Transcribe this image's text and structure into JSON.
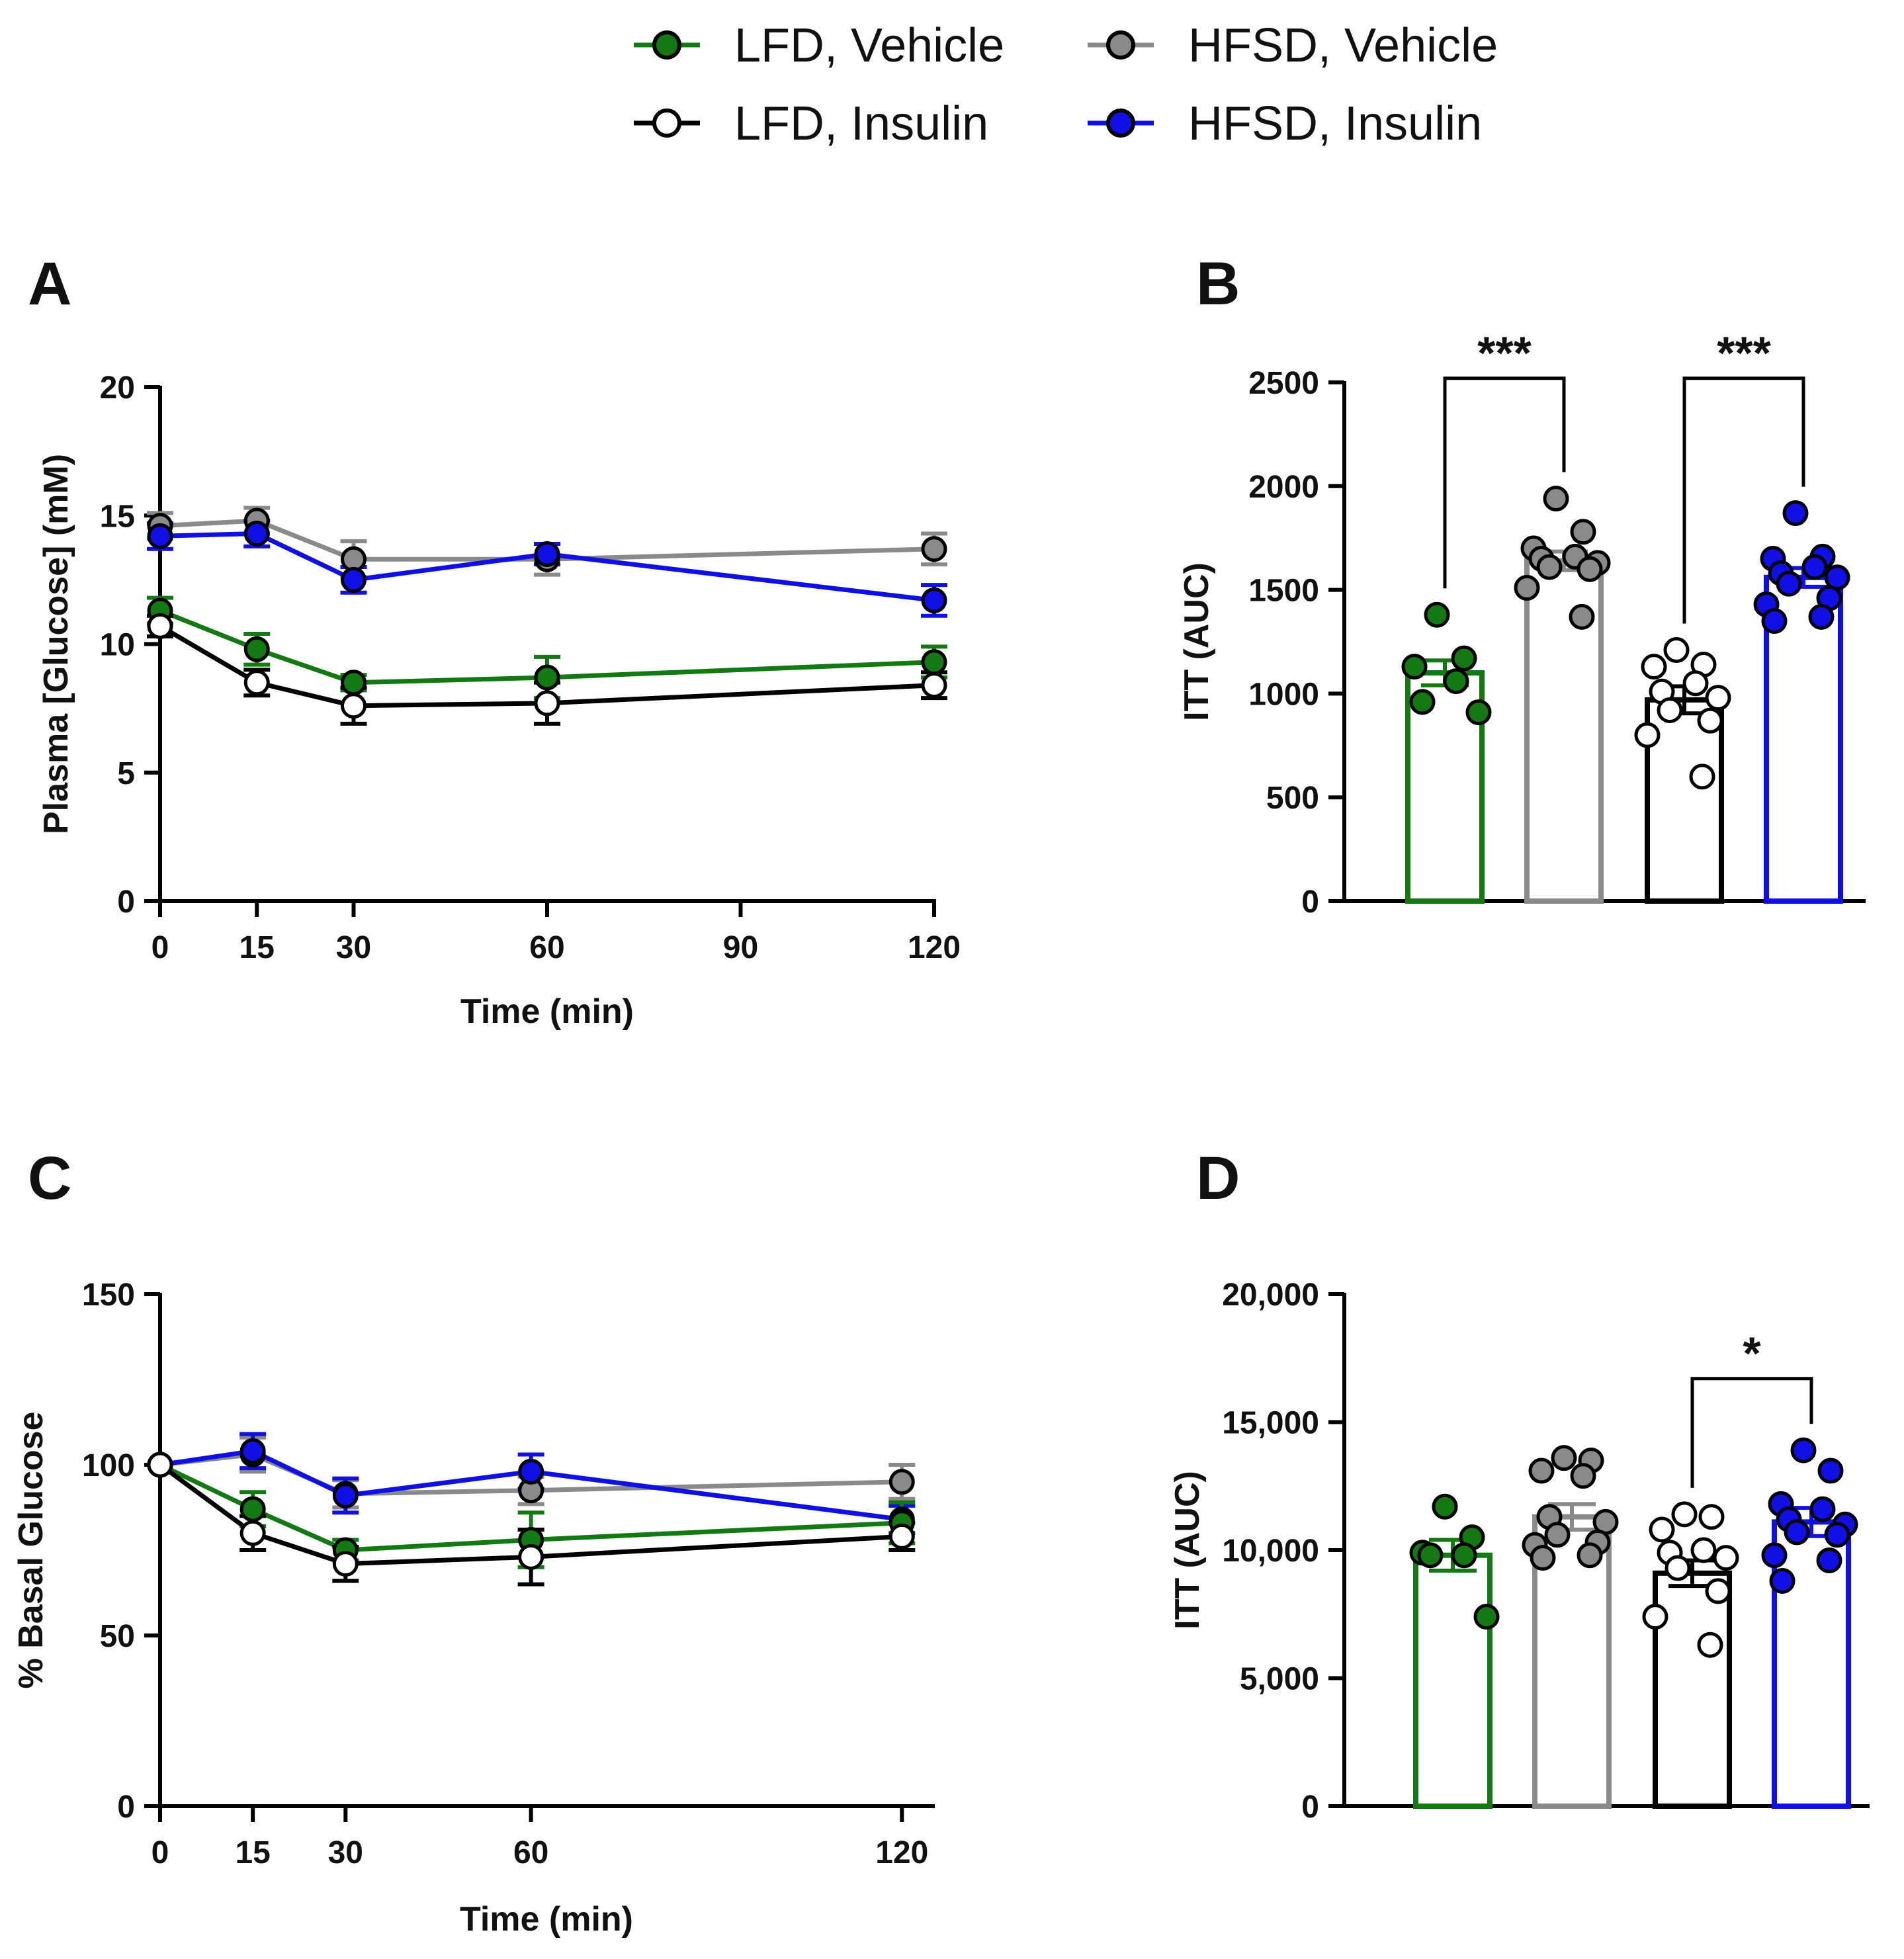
{
  "legend": [
    {
      "label": "LFD, Vehicle",
      "line_color": "#137A13",
      "fill": "#137A13"
    },
    {
      "label": "HFSD, Vehicle",
      "line_color": "#8A8A8A",
      "fill": "#8A8A8A"
    },
    {
      "label": "LFD, Insulin",
      "line_color": "#000000",
      "fill": "#FFFFFF"
    },
    {
      "label": "HFSD, Insulin",
      "line_color": "#1010E6",
      "fill": "#1010E6"
    }
  ],
  "chart_data": [
    {
      "panel": "A",
      "type": "line",
      "xlabel": "Time (min)",
      "ylabel": "Plasma [Glucose] (mM)",
      "xlim": [
        0,
        120
      ],
      "ylim": [
        0,
        20
      ],
      "xticks": [
        0,
        15,
        30,
        60,
        90,
        120
      ],
      "yticks": [
        0,
        5,
        10,
        15,
        20
      ],
      "x": [
        0,
        15,
        30,
        60,
        120
      ],
      "series": [
        {
          "name": "HFSD, Vehicle",
          "color": "#8A8A8A",
          "fill": "#8A8A8A",
          "values": [
            14.6,
            14.8,
            13.3,
            13.3,
            13.7
          ],
          "err": [
            0.5,
            0.5,
            0.7,
            0.6,
            0.6
          ]
        },
        {
          "name": "HFSD, Insulin",
          "color": "#1010E6",
          "fill": "#1010E6",
          "values": [
            14.2,
            14.3,
            12.5,
            13.5,
            11.7
          ],
          "err": [
            0.5,
            0.5,
            0.5,
            0.4,
            0.6
          ]
        },
        {
          "name": "LFD, Vehicle",
          "color": "#137A13",
          "fill": "#137A13",
          "values": [
            11.3,
            9.8,
            8.5,
            8.7,
            9.3
          ],
          "err": [
            0.5,
            0.6,
            0.3,
            0.8,
            0.6
          ]
        },
        {
          "name": "LFD, Insulin",
          "color": "#000000",
          "fill": "#FFFFFF",
          "values": [
            10.7,
            8.5,
            7.6,
            7.7,
            8.4
          ],
          "err": [
            0.4,
            0.5,
            0.7,
            0.8,
            0.5
          ]
        }
      ]
    },
    {
      "panel": "B",
      "type": "bar",
      "ylabel": "ITT (AUC)",
      "ylim": [
        0,
        2500
      ],
      "yticks": [
        0,
        500,
        1000,
        1500,
        2000,
        2500
      ],
      "ytick_labels": [
        "0",
        "500",
        "1000",
        "1500",
        "2000",
        "2500"
      ],
      "bars": [
        {
          "name": "LFD, Vehicle",
          "color": "#137A13",
          "fill": "#137A13",
          "mean": 1100,
          "sem": 60,
          "points": [
            1380,
            1170,
            1130,
            1060,
            960,
            910
          ]
        },
        {
          "name": "HFSD, Vehicle",
          "color": "#8A8A8A",
          "fill": "#8A8A8A",
          "mean": 1640,
          "sem": 45,
          "points": [
            1940,
            1780,
            1700,
            1660,
            1650,
            1630,
            1610,
            1600,
            1510,
            1370
          ]
        },
        {
          "name": "LFD, Insulin",
          "color": "#000000",
          "fill": "#FFFFFF",
          "mean": 970,
          "sem": 65,
          "points": [
            1210,
            1140,
            1130,
            1050,
            1010,
            980,
            920,
            870,
            800,
            600
          ]
        },
        {
          "name": "HFSD, Insulin",
          "color": "#1010E6",
          "fill": "#1010E6",
          "mean": 1560,
          "sem": 45,
          "points": [
            1870,
            1660,
            1650,
            1610,
            1580,
            1560,
            1530,
            1460,
            1430,
            1370,
            1350
          ]
        }
      ],
      "significance": [
        {
          "from": 0,
          "to": 1,
          "label": "***",
          "y": 2520
        },
        {
          "from": 2,
          "to": 3,
          "label": "***",
          "y": 2520
        }
      ]
    },
    {
      "panel": "C",
      "type": "line",
      "xlabel": "Time (min)",
      "ylabel": "% Basal Glucose",
      "xlim": [
        0,
        125
      ],
      "ylim": [
        0,
        150
      ],
      "xticks": [
        0,
        15,
        30,
        60,
        120
      ],
      "yticks": [
        0,
        50,
        100,
        150
      ],
      "x": [
        0,
        15,
        30,
        60,
        120
      ],
      "series": [
        {
          "name": "HFSD, Vehicle",
          "color": "#8A8A8A",
          "fill": "#8A8A8A",
          "values": [
            100,
            103,
            91.5,
            92.5,
            95
          ],
          "err": [
            0,
            5,
            4,
            4,
            5
          ]
        },
        {
          "name": "HFSD, Insulin",
          "color": "#1010E6",
          "fill": "#1010E6",
          "values": [
            100,
            104,
            91,
            98,
            84
          ],
          "err": [
            0,
            5,
            5,
            5,
            4
          ]
        },
        {
          "name": "LFD, Vehicle",
          "color": "#137A13",
          "fill": "#137A13",
          "values": [
            100,
            87,
            75,
            78,
            83
          ],
          "err": [
            0,
            5,
            3,
            8,
            6
          ]
        },
        {
          "name": "LFD, Insulin",
          "color": "#000000",
          "fill": "#FFFFFF",
          "values": [
            100,
            80,
            71,
            73,
            79
          ],
          "err": [
            0,
            5,
            5,
            8,
            4
          ]
        }
      ]
    },
    {
      "panel": "D",
      "type": "bar",
      "ylabel": "ITT (AUC)",
      "ylim": [
        0,
        20000
      ],
      "yticks": [
        0,
        5000,
        10000,
        15000,
        20000
      ],
      "ytick_labels": [
        "0",
        "5,000",
        "10,000",
        "15,000",
        "20,000"
      ],
      "bars": [
        {
          "name": "LFD, Vehicle",
          "color": "#137A13",
          "fill": "#137A13",
          "mean": 9800,
          "sem": 600,
          "points": [
            11700,
            10500,
            9900,
            9800,
            9800,
            7400
          ]
        },
        {
          "name": "HFSD, Vehicle",
          "color": "#8A8A8A",
          "fill": "#8A8A8A",
          "mean": 11300,
          "sem": 500,
          "points": [
            13600,
            13500,
            13100,
            12900,
            11300,
            11100,
            10600,
            10300,
            10200,
            9800,
            9700
          ]
        },
        {
          "name": "LFD, Insulin",
          "color": "#000000",
          "fill": "#FFFFFF",
          "mean": 9100,
          "sem": 500,
          "points": [
            11400,
            11300,
            10800,
            10000,
            9900,
            9700,
            9300,
            8400,
            7400,
            6300
          ]
        },
        {
          "name": "HFSD, Insulin",
          "color": "#1010E6",
          "fill": "#1010E6",
          "mean": 11100,
          "sem": 550,
          "points": [
            13900,
            13100,
            11800,
            11600,
            11200,
            11000,
            10700,
            10600,
            9800,
            9600,
            8800
          ]
        }
      ],
      "significance": [
        {
          "from": 2,
          "to": 3,
          "label": "*",
          "y": 16700
        }
      ]
    }
  ]
}
